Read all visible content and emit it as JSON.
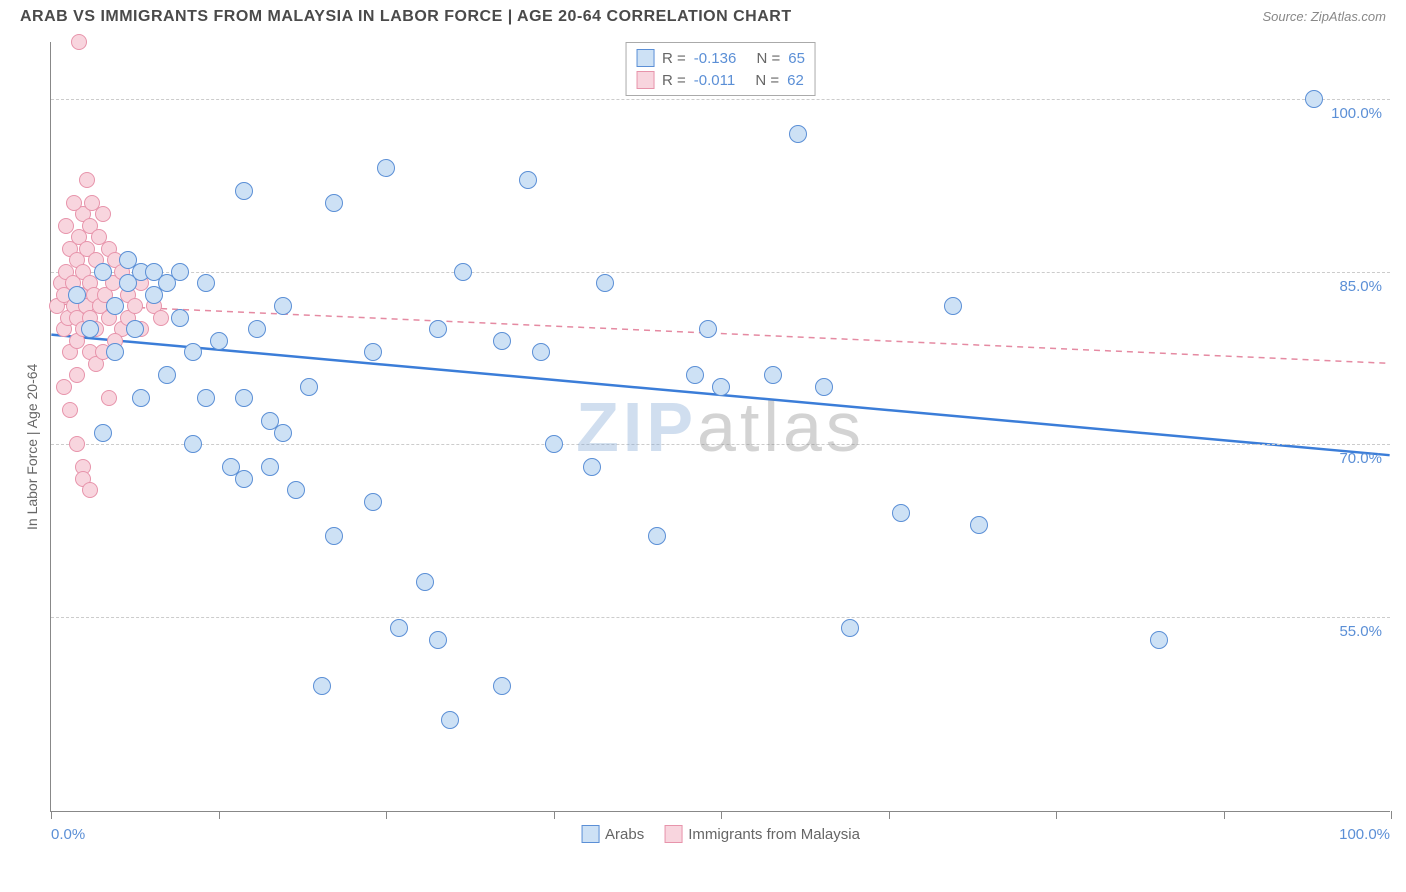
{
  "header": {
    "title": "ARAB VS IMMIGRANTS FROM MALAYSIA IN LABOR FORCE | AGE 20-64 CORRELATION CHART",
    "source_prefix": "Source: ",
    "source_name": "ZipAtlas.com"
  },
  "yaxis": {
    "label": "In Labor Force | Age 20-64",
    "ticks": [
      {
        "value": 100.0,
        "label": "100.0%"
      },
      {
        "value": 85.0,
        "label": "85.0%"
      },
      {
        "value": 70.0,
        "label": "70.0%"
      },
      {
        "value": 55.0,
        "label": "55.0%"
      }
    ],
    "domain_min": 38,
    "domain_max": 105
  },
  "xaxis": {
    "left_label": "0.0%",
    "right_label": "100.0%",
    "domain_min": 0,
    "domain_max": 104,
    "tick_positions": [
      0,
      13,
      26,
      39,
      52,
      65,
      78,
      91,
      104
    ]
  },
  "legend_top": {
    "rows": [
      {
        "swatch_fill": "#cde1f5",
        "swatch_border": "#5b8fd6",
        "r_label": "R =",
        "r_value": "-0.136",
        "n_label": "N =",
        "n_value": "65"
      },
      {
        "swatch_fill": "#f8d5de",
        "swatch_border": "#e794ab",
        "r_label": "R =",
        "r_value": "-0.011",
        "n_label": "N =",
        "n_value": "62"
      }
    ]
  },
  "legend_bottom": {
    "items": [
      {
        "swatch_fill": "#cde1f5",
        "swatch_border": "#5b8fd6",
        "label": "Arabs"
      },
      {
        "swatch_fill": "#f8d5de",
        "swatch_border": "#e794ab",
        "label": "Immigrants from Malaysia"
      }
    ]
  },
  "watermark": {
    "part1": "ZIP",
    "part2": "atlas"
  },
  "series": {
    "arabs": {
      "fill": "#cde1f5",
      "border": "#5b8fd6",
      "marker_size": 18,
      "trend": {
        "y_at_xmin": 79.5,
        "y_at_xmax": 69.0,
        "stroke": "#3b7dd8",
        "width": 2.5,
        "dash": "none"
      },
      "points": [
        {
          "x": 2,
          "y": 83
        },
        {
          "x": 3,
          "y": 80
        },
        {
          "x": 4,
          "y": 85
        },
        {
          "x": 5,
          "y": 82
        },
        {
          "x": 5,
          "y": 78
        },
        {
          "x": 6,
          "y": 84
        },
        {
          "x": 6,
          "y": 86
        },
        {
          "x": 6.5,
          "y": 80
        },
        {
          "x": 7,
          "y": 85
        },
        {
          "x": 7,
          "y": 74
        },
        {
          "x": 8,
          "y": 83
        },
        {
          "x": 8,
          "y": 85
        },
        {
          "x": 9,
          "y": 84
        },
        {
          "x": 10,
          "y": 85
        },
        {
          "x": 10,
          "y": 81
        },
        {
          "x": 11,
          "y": 78
        },
        {
          "x": 11,
          "y": 70
        },
        {
          "x": 12,
          "y": 84
        },
        {
          "x": 12,
          "y": 74
        },
        {
          "x": 13,
          "y": 79
        },
        {
          "x": 14,
          "y": 68
        },
        {
          "x": 15,
          "y": 92
        },
        {
          "x": 15,
          "y": 74
        },
        {
          "x": 15,
          "y": 67
        },
        {
          "x": 16,
          "y": 80
        },
        {
          "x": 17,
          "y": 72
        },
        {
          "x": 17,
          "y": 68
        },
        {
          "x": 18,
          "y": 82
        },
        {
          "x": 18,
          "y": 71
        },
        {
          "x": 19,
          "y": 66
        },
        {
          "x": 20,
          "y": 75
        },
        {
          "x": 21,
          "y": 49
        },
        {
          "x": 22,
          "y": 91
        },
        {
          "x": 22,
          "y": 62
        },
        {
          "x": 25,
          "y": 78
        },
        {
          "x": 25,
          "y": 65
        },
        {
          "x": 26,
          "y": 94
        },
        {
          "x": 27,
          "y": 54
        },
        {
          "x": 29,
          "y": 58
        },
        {
          "x": 30,
          "y": 80
        },
        {
          "x": 30,
          "y": 53
        },
        {
          "x": 31,
          "y": 46
        },
        {
          "x": 32,
          "y": 85
        },
        {
          "x": 35,
          "y": 79
        },
        {
          "x": 35,
          "y": 49
        },
        {
          "x": 37,
          "y": 93
        },
        {
          "x": 38,
          "y": 78
        },
        {
          "x": 39,
          "y": 70
        },
        {
          "x": 42,
          "y": 68
        },
        {
          "x": 43,
          "y": 84
        },
        {
          "x": 47,
          "y": 62
        },
        {
          "x": 50,
          "y": 76
        },
        {
          "x": 51,
          "y": 80
        },
        {
          "x": 52,
          "y": 75
        },
        {
          "x": 56,
          "y": 76
        },
        {
          "x": 58,
          "y": 97
        },
        {
          "x": 60,
          "y": 75
        },
        {
          "x": 62,
          "y": 54
        },
        {
          "x": 66,
          "y": 64
        },
        {
          "x": 70,
          "y": 82
        },
        {
          "x": 72,
          "y": 63
        },
        {
          "x": 86,
          "y": 53
        },
        {
          "x": 98,
          "y": 100
        },
        {
          "x": 4,
          "y": 71
        },
        {
          "x": 9,
          "y": 76
        }
      ]
    },
    "malaysia": {
      "fill": "#f8d5de",
      "border": "#e794ab",
      "marker_size": 16,
      "trend": {
        "y_at_xmin": 82.2,
        "y_at_xmax": 77.0,
        "stroke": "#e58aa2",
        "width": 1.5,
        "dash": "6,5"
      },
      "points": [
        {
          "x": 0.5,
          "y": 82
        },
        {
          "x": 0.8,
          "y": 84
        },
        {
          "x": 1,
          "y": 80
        },
        {
          "x": 1,
          "y": 83
        },
        {
          "x": 1.2,
          "y": 85
        },
        {
          "x": 1.3,
          "y": 81
        },
        {
          "x": 1.5,
          "y": 87
        },
        {
          "x": 1.5,
          "y": 78
        },
        {
          "x": 1.7,
          "y": 84
        },
        {
          "x": 1.8,
          "y": 82
        },
        {
          "x": 2,
          "y": 86
        },
        {
          "x": 2,
          "y": 81
        },
        {
          "x": 2,
          "y": 79
        },
        {
          "x": 2.2,
          "y": 88
        },
        {
          "x": 2.3,
          "y": 83
        },
        {
          "x": 2.5,
          "y": 90
        },
        {
          "x": 2.5,
          "y": 85
        },
        {
          "x": 2.5,
          "y": 80
        },
        {
          "x": 2.7,
          "y": 82
        },
        {
          "x": 2.8,
          "y": 87
        },
        {
          "x": 3,
          "y": 84
        },
        {
          "x": 3,
          "y": 89
        },
        {
          "x": 3,
          "y": 81
        },
        {
          "x": 3.2,
          "y": 91
        },
        {
          "x": 3.3,
          "y": 83
        },
        {
          "x": 3.5,
          "y": 86
        },
        {
          "x": 3.5,
          "y": 80
        },
        {
          "x": 3.7,
          "y": 88
        },
        {
          "x": 3.8,
          "y": 82
        },
        {
          "x": 4,
          "y": 85
        },
        {
          "x": 4,
          "y": 90
        },
        {
          "x": 4.2,
          "y": 83
        },
        {
          "x": 4.5,
          "y": 87
        },
        {
          "x": 4.5,
          "y": 81
        },
        {
          "x": 4.8,
          "y": 84
        },
        {
          "x": 5,
          "y": 86
        },
        {
          "x": 5,
          "y": 82
        },
        {
          "x": 5.5,
          "y": 80
        },
        {
          "x": 5.5,
          "y": 85
        },
        {
          "x": 6,
          "y": 83
        },
        {
          "x": 6,
          "y": 81
        },
        {
          "x": 6.5,
          "y": 82
        },
        {
          "x": 7,
          "y": 84
        },
        {
          "x": 7,
          "y": 80
        },
        {
          "x": 8,
          "y": 82
        },
        {
          "x": 8.5,
          "y": 81
        },
        {
          "x": 1,
          "y": 75
        },
        {
          "x": 1.5,
          "y": 73
        },
        {
          "x": 2,
          "y": 76
        },
        {
          "x": 2,
          "y": 70
        },
        {
          "x": 2.5,
          "y": 68
        },
        {
          "x": 2.5,
          "y": 67
        },
        {
          "x": 3,
          "y": 78
        },
        {
          "x": 3.5,
          "y": 77
        },
        {
          "x": 1.2,
          "y": 89
        },
        {
          "x": 1.8,
          "y": 91
        },
        {
          "x": 2.2,
          "y": 105
        },
        {
          "x": 2.8,
          "y": 93
        },
        {
          "x": 4,
          "y": 78
        },
        {
          "x": 5,
          "y": 79
        },
        {
          "x": 3,
          "y": 66
        },
        {
          "x": 4.5,
          "y": 74
        }
      ]
    }
  }
}
